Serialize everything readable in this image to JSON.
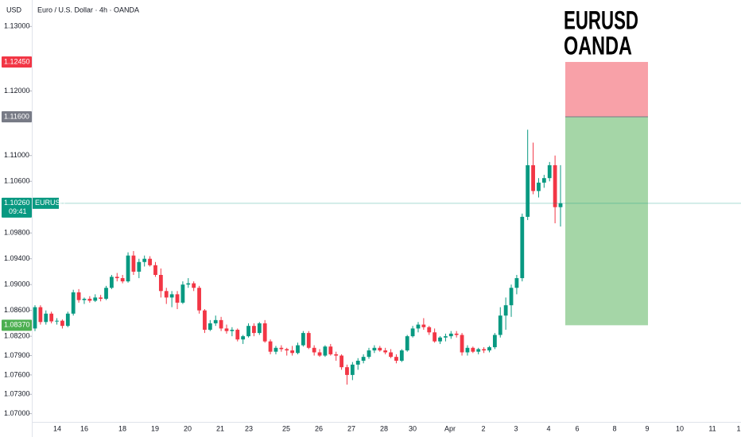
{
  "chart_data": {
    "type": "candlestick",
    "title": "Euro / U.S. Dollar · 4h · OANDA",
    "y_axis_label": "USD",
    "annotation": [
      "EURUSD",
      "OANDA"
    ],
    "x_tick_labels": [
      "14",
      "16",
      "18",
      "19",
      "20",
      "21",
      "23",
      "25",
      "26",
      "27",
      "28",
      "30",
      "Apr",
      "2",
      "3",
      "4",
      "6",
      "8",
      "9",
      "10",
      "11",
      "1"
    ],
    "ylim": [
      1.0686,
      1.1341
    ],
    "yticks": [
      {
        "value": 1.13,
        "label": "1.13000"
      },
      {
        "value": 1.12,
        "label": "1.12000"
      },
      {
        "value": 1.11,
        "label": "1.11000"
      },
      {
        "value": 1.106,
        "label": "1.10600"
      },
      {
        "value": 1.098,
        "label": "1.09800"
      },
      {
        "value": 1.094,
        "label": "1.09400"
      },
      {
        "value": 1.09,
        "label": "1.09000"
      },
      {
        "value": 1.086,
        "label": "1.08600"
      },
      {
        "value": 1.082,
        "label": "1.08200"
      },
      {
        "value": 1.079,
        "label": "1.07900"
      },
      {
        "value": 1.076,
        "label": "1.07600"
      },
      {
        "value": 1.073,
        "label": "1.07300"
      },
      {
        "value": 1.07,
        "label": "1.07000"
      }
    ],
    "up_color": "#089981",
    "down_color": "#f23645",
    "current_price": {
      "value": 1.1026,
      "label": "1.10260",
      "symbol": "EURUSD",
      "countdown": "09:41",
      "color": "#089981"
    },
    "position": {
      "stop": {
        "value": 1.1245,
        "label": "1.12450",
        "color": "#f23645",
        "fill": "#f8a1a8"
      },
      "entry": {
        "value": 1.116,
        "label": "1.11600",
        "color": "#787b86"
      },
      "target": {
        "value": 1.0837,
        "label": "1.08370",
        "color": "#4caf50",
        "fill": "#a5d6a7"
      }
    },
    "series": [
      {
        "name": "EURUSD",
        "open": [
          1.0832,
          1.0865,
          1.0842,
          1.0855,
          1.0843,
          1.0844,
          1.0836,
          1.0855,
          1.0888,
          1.0876,
          1.0878,
          1.0875,
          1.088,
          1.0878,
          1.0895,
          1.0912,
          1.091,
          1.0905,
          1.0945,
          1.092,
          1.0935,
          1.094,
          1.093,
          1.0915,
          1.089,
          1.088,
          1.0885,
          1.0872,
          1.09,
          1.0902,
          1.0895,
          1.086,
          1.083,
          1.084,
          1.0845,
          1.0832,
          1.0828,
          1.083,
          1.0815,
          1.082,
          1.0836,
          1.0825,
          1.084,
          1.0812,
          1.0796,
          1.0802,
          1.08,
          1.0798,
          1.0794,
          1.0806,
          1.0825,
          1.0802,
          1.0795,
          1.079,
          1.0804,
          1.0792,
          1.079,
          1.0772,
          1.076,
          1.0776,
          1.0782,
          1.0788,
          1.0798,
          1.0802,
          1.0798,
          1.0795,
          1.0788,
          1.0782,
          1.0798,
          1.082,
          1.0832,
          1.0838,
          1.0834,
          1.0826,
          1.0812,
          1.0818,
          1.082,
          1.0824,
          1.0822,
          1.0795,
          1.0802,
          1.0796,
          1.08,
          1.0798,
          1.0803,
          1.0822,
          1.0852,
          1.0868,
          1.0895,
          1.091,
          1.1005,
          1.1085,
          1.1045,
          1.1058,
          1.1065,
          1.1085,
          1.102
        ],
        "high": [
          1.0868,
          1.0868,
          1.086,
          1.0858,
          1.0848,
          1.0846,
          1.0858,
          1.0892,
          1.0893,
          1.088,
          1.0882,
          1.0885,
          1.0884,
          1.0898,
          1.0915,
          1.0918,
          1.0915,
          1.095,
          1.0952,
          1.094,
          1.0945,
          1.0944,
          1.0935,
          1.0925,
          1.0895,
          1.089,
          1.089,
          1.0905,
          1.091,
          1.0905,
          1.0898,
          1.0862,
          1.0845,
          1.0852,
          1.085,
          1.0838,
          1.0834,
          1.0832,
          1.0822,
          1.084,
          1.084,
          1.0842,
          1.0845,
          1.0815,
          1.0805,
          1.0806,
          1.0802,
          1.0805,
          1.081,
          1.0828,
          1.0828,
          1.0806,
          1.08,
          1.0806,
          1.0808,
          1.0796,
          1.0792,
          1.0776,
          1.078,
          1.0786,
          1.0792,
          1.0802,
          1.0806,
          1.0805,
          1.0802,
          1.08,
          1.0792,
          1.08,
          1.0822,
          1.0836,
          1.0842,
          1.0848,
          1.0836,
          1.0832,
          1.082,
          1.0824,
          1.0828,
          1.0828,
          1.0825,
          1.0806,
          1.0804,
          1.0802,
          1.0803,
          1.0805,
          1.0825,
          1.0865,
          1.088,
          1.09,
          1.0915,
          1.101,
          1.114,
          1.112,
          1.1065,
          1.107,
          1.109,
          1.11,
          1.1085
        ],
        "low": [
          1.0828,
          1.0838,
          1.0838,
          1.084,
          1.0838,
          1.0832,
          1.0834,
          1.0852,
          1.0872,
          1.087,
          1.0872,
          1.0873,
          1.0874,
          1.0876,
          1.0893,
          1.0905,
          1.0902,
          1.0903,
          1.0915,
          1.091,
          1.0928,
          1.0928,
          1.0912,
          1.088,
          1.087,
          1.0865,
          1.0862,
          1.087,
          1.0895,
          1.089,
          1.0855,
          1.0825,
          1.0828,
          1.0836,
          1.0828,
          1.0824,
          1.082,
          1.0812,
          1.0808,
          1.0818,
          1.082,
          1.0822,
          1.081,
          1.0792,
          1.0792,
          1.0796,
          1.079,
          1.079,
          1.0792,
          1.0804,
          1.08,
          1.079,
          1.0788,
          1.0788,
          1.079,
          1.0782,
          1.0768,
          1.0745,
          1.0752,
          1.0768,
          1.0778,
          1.0785,
          1.0794,
          1.0796,
          1.0792,
          1.0786,
          1.0778,
          1.078,
          1.0796,
          1.0818,
          1.0826,
          1.083,
          1.0822,
          1.081,
          1.0808,
          1.0812,
          1.0816,
          1.0818,
          1.079,
          1.079,
          1.0794,
          1.0792,
          1.0794,
          1.0795,
          1.08,
          1.0818,
          1.083,
          1.085,
          1.0885,
          1.0905,
          1.1,
          1.104,
          1.1035,
          1.105,
          1.106,
          1.0995,
          1.099
        ],
        "close": [
          1.0865,
          1.0842,
          1.0855,
          1.0843,
          1.0844,
          1.0836,
          1.0855,
          1.0888,
          1.0876,
          1.0878,
          1.0875,
          1.088,
          1.0878,
          1.0895,
          1.0912,
          1.091,
          1.0905,
          1.0945,
          1.092,
          1.0935,
          1.094,
          1.093,
          1.0915,
          1.089,
          1.088,
          1.0885,
          1.0872,
          1.09,
          1.0902,
          1.0895,
          1.086,
          1.083,
          1.084,
          1.0845,
          1.0832,
          1.0828,
          1.083,
          1.0815,
          1.082,
          1.0836,
          1.0825,
          1.084,
          1.0812,
          1.0796,
          1.0802,
          1.08,
          1.0798,
          1.0794,
          1.0806,
          1.0825,
          1.0802,
          1.0795,
          1.079,
          1.0804,
          1.0792,
          1.079,
          1.0772,
          1.076,
          1.0776,
          1.0782,
          1.0788,
          1.0798,
          1.0802,
          1.0798,
          1.0795,
          1.0788,
          1.0782,
          1.0798,
          1.082,
          1.0832,
          1.0838,
          1.0834,
          1.0826,
          1.0812,
          1.0818,
          1.082,
          1.0824,
          1.0822,
          1.0795,
          1.0802,
          1.0796,
          1.08,
          1.0798,
          1.0803,
          1.0822,
          1.0852,
          1.0868,
          1.0895,
          1.091,
          1.1005,
          1.1085,
          1.1045,
          1.1058,
          1.1065,
          1.1085,
          1.102,
          1.1026
        ]
      }
    ]
  }
}
